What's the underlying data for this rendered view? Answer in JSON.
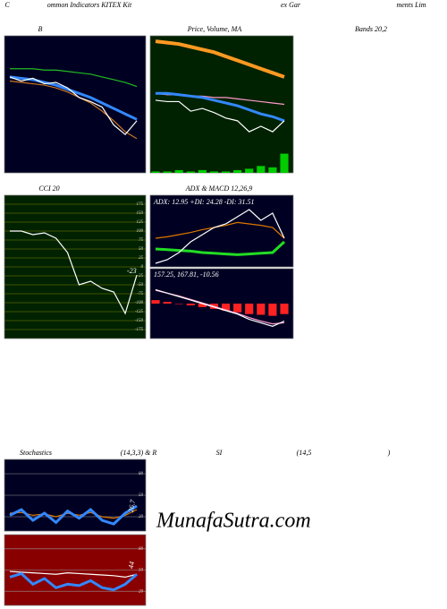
{
  "header": {
    "rows": [
      [
        "C",
        "ommon Indicators KITEX Kit",
        "ex Gar",
        "ments Lim"
      ],
      [
        "B",
        "Price, Volume, MA",
        "Bands 20,2"
      ],
      [
        "CCI 20",
        "ADX  & MACD 12,26,9"
      ],
      [
        "Stochastics",
        "(14,3,3) & R",
        "SI",
        "(14,5",
        ")"
      ]
    ]
  },
  "watermark": "MunafaSutra.com",
  "chart_data": [
    {
      "type": "line",
      "ylim": [
        0,
        100
      ],
      "series": [
        {
          "color": "#22bb22",
          "values": [
            76,
            76,
            76,
            75,
            75,
            74,
            73,
            72,
            70,
            68,
            66,
            63
          ]
        },
        {
          "color": "#3388ff",
          "width": 3,
          "values": [
            70,
            69,
            68,
            66,
            64,
            61,
            58,
            55,
            51,
            47,
            43,
            39
          ]
        },
        {
          "color": "#cc7722",
          "values": [
            67,
            66,
            65,
            64,
            62,
            59,
            55,
            51,
            45,
            38,
            30,
            25
          ]
        },
        {
          "color": "#ffffff",
          "values": [
            70,
            67,
            69,
            65,
            66,
            62,
            55,
            52,
            48,
            35,
            28,
            38
          ]
        }
      ]
    },
    {
      "type": "line",
      "ylim": [
        0,
        100
      ],
      "series": [
        {
          "color": "#ff9922",
          "width": 4,
          "values": [
            96,
            95,
            94,
            92,
            90,
            88,
            85,
            82,
            79,
            76,
            73,
            70
          ]
        },
        {
          "color": "#ff99cc",
          "values": [
            58,
            57,
            57,
            56,
            56,
            55,
            55,
            54,
            53,
            52,
            51,
            50
          ]
        },
        {
          "color": "#3388ff",
          "width": 3,
          "values": [
            58,
            58,
            57,
            56,
            55,
            53,
            51,
            49,
            46,
            43,
            41,
            38
          ]
        },
        {
          "color": "#ffffff",
          "values": [
            53,
            52,
            52,
            45,
            47,
            44,
            40,
            38,
            30,
            34,
            30,
            38
          ]
        },
        {
          "color": "#00cc00",
          "style": "bar",
          "values": [
            1,
            1,
            2,
            1,
            2,
            1,
            1,
            2,
            3,
            5,
            4,
            14
          ]
        }
      ]
    },
    {
      "type": "line",
      "ylim": [
        -200,
        200
      ],
      "yticks": [
        175,
        150,
        125,
        100,
        75,
        50,
        25,
        0,
        -25,
        -50,
        -75,
        -100,
        -125,
        -150,
        -175
      ],
      "grid": true,
      "annotation": "-23",
      "series": [
        {
          "color": "#ffffff",
          "values": [
            100,
            100,
            90,
            95,
            80,
            40,
            -50,
            -40,
            -60,
            -70,
            -130,
            -23
          ]
        }
      ]
    },
    {
      "type": "line",
      "ylim": [
        0,
        100
      ],
      "annotation": "ADX: 12.95 +DI: 24.28 -DI: 31.51",
      "series": [
        {
          "color": "#dd7700",
          "values": [
            40,
            42,
            45,
            48,
            52,
            55,
            58,
            62,
            60,
            58,
            55,
            40
          ]
        },
        {
          "color": "#22dd22",
          "width": 3,
          "values": [
            25,
            24,
            23,
            22,
            20,
            19,
            18,
            17,
            18,
            19,
            20,
            35
          ]
        },
        {
          "color": "#ffffff",
          "values": [
            5,
            10,
            20,
            35,
            45,
            55,
            60,
            70,
            80,
            65,
            75,
            40
          ]
        }
      ]
    },
    {
      "type": "line",
      "ylim": [
        -100,
        100
      ],
      "annotation": "157.25, 167.81, -10.56",
      "series": [
        {
          "color": "#ff2222",
          "style": "bar",
          "values": [
            10,
            5,
            0,
            -5,
            -10,
            -15,
            -20,
            -25,
            -30,
            -32,
            -35,
            -30
          ]
        },
        {
          "color": "#ff99cc",
          "values": [
            38,
            30,
            22,
            12,
            2,
            -8,
            -18,
            -28,
            -40,
            -50,
            -58,
            -55
          ]
        },
        {
          "color": "#ffffff",
          "values": [
            40,
            30,
            20,
            10,
            0,
            -10,
            -20,
            -30,
            -45,
            -55,
            -65,
            -50
          ]
        }
      ]
    },
    {
      "type": "line",
      "ylim": [
        0,
        100
      ],
      "yticks": [
        80,
        50,
        20
      ],
      "grid": true,
      "annotation": "26.7",
      "series": [
        {
          "color": "#dd7700",
          "values": [
            25,
            26,
            22,
            24,
            20,
            25,
            22,
            26,
            20,
            18,
            22,
            30
          ]
        },
        {
          "color": "#3388ff",
          "width": 3,
          "values": [
            22,
            30,
            15,
            25,
            12,
            28,
            18,
            30,
            15,
            10,
            25,
            35
          ]
        }
      ]
    },
    {
      "type": "line",
      "ylim": [
        0,
        100
      ],
      "yticks": [
        80,
        50,
        20
      ],
      "grid": true,
      "annotation": "44",
      "series": [
        {
          "color": "#ffffff",
          "values": [
            48,
            47,
            46,
            45,
            44,
            46,
            45,
            44,
            43,
            42,
            40,
            44
          ]
        },
        {
          "color": "#3388ff",
          "width": 3,
          "values": [
            40,
            45,
            30,
            38,
            25,
            30,
            28,
            35,
            25,
            22,
            30,
            44
          ]
        }
      ]
    }
  ]
}
